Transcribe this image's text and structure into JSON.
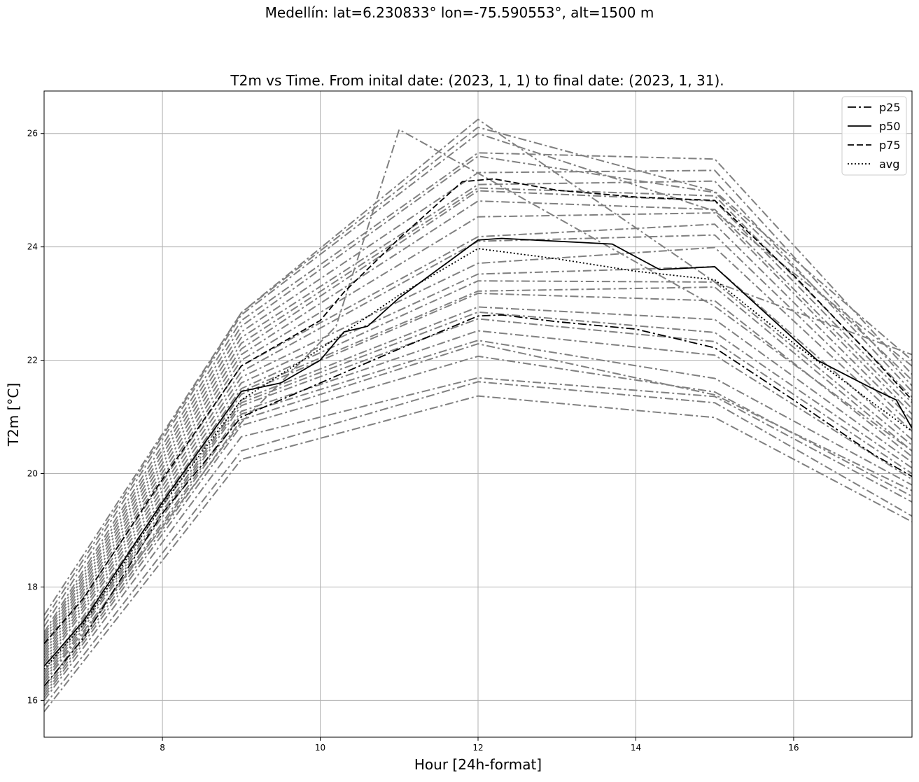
{
  "figure": {
    "suptitle": "Medellín: lat=6.230833° lon=-75.590553°, alt=1500 m"
  },
  "chart_data": {
    "type": "line",
    "title": "T2m vs Time. From inital date: (2023, 1, 1) to final date: (2023, 1, 31).",
    "xlabel": "Hour [24h-format]",
    "ylabel": "T2m [°C]",
    "xlim": [
      6.5,
      17.5
    ],
    "ylim": [
      15.35,
      26.75
    ],
    "xticks": [
      8,
      10,
      12,
      14,
      16
    ],
    "yticks": [
      16,
      18,
      20,
      22,
      24,
      26
    ],
    "grid": true,
    "legend_position": "top-right",
    "colors": {
      "members": "#808080",
      "summary": "#000000"
    },
    "member_hours": [
      6.5,
      9,
      12,
      15,
      17.5
    ],
    "members": [
      [
        15.8,
        20.25,
        21.37,
        20.99,
        19.15
      ],
      [
        15.9,
        20.4,
        21.62,
        21.25,
        19.25
      ],
      [
        16.0,
        20.65,
        21.69,
        21.36,
        19.5
      ],
      [
        16.05,
        20.85,
        22.07,
        21.44,
        19.6
      ],
      [
        16.1,
        20.95,
        22.29,
        21.39,
        19.7
      ],
      [
        16.15,
        21.05,
        22.35,
        21.68,
        19.8
      ],
      [
        16.2,
        21.1,
        22.52,
        22.09,
        19.9
      ],
      [
        16.3,
        21.2,
        22.73,
        22.33,
        20.0
      ],
      [
        16.35,
        21.25,
        22.85,
        22.49,
        20.1
      ],
      [
        16.4,
        21.3,
        22.94,
        22.72,
        20.2
      ],
      [
        16.45,
        21.4,
        23.18,
        23.05,
        20.3
      ],
      [
        16.5,
        21.45,
        23.22,
        23.29,
        20.4
      ],
      [
        16.6,
        21.5,
        23.4,
        23.38,
        20.5
      ],
      [
        16.65,
        21.6,
        23.52,
        23.65,
        20.6
      ],
      [
        16.7,
        21.7,
        23.71,
        23.99,
        20.75
      ],
      [
        16.75,
        21.8,
        24.1,
        24.21,
        20.85
      ],
      [
        16.8,
        21.9,
        24.18,
        24.4,
        20.95
      ],
      [
        16.85,
        22.0,
        24.53,
        24.6,
        21.05
      ],
      [
        16.9,
        22.1,
        24.81,
        24.66,
        21.15
      ],
      [
        16.95,
        22.2,
        24.99,
        24.81,
        21.25
      ],
      [
        17.0,
        22.3,
        25.04,
        24.9,
        21.35
      ],
      [
        17.05,
        22.4,
        25.1,
        25.16,
        21.45
      ],
      [
        17.1,
        22.5,
        25.31,
        25.35,
        21.55
      ],
      [
        17.15,
        22.6,
        25.6,
        24.96,
        21.65
      ],
      [
        17.2,
        22.7,
        25.66,
        25.55,
        21.75
      ],
      [
        17.3,
        22.8,
        26.0,
        24.63,
        21.9
      ],
      [
        17.4,
        22.84,
        26.11,
        24.98,
        22.0
      ],
      [
        17.5,
        22.84,
        26.25,
        23.38,
        22.1
      ]
    ],
    "extra_member": {
      "x": [
        6.5,
        9,
        10.2,
        11,
        12,
        15,
        17.5
      ],
      "y": [
        16.3,
        20.9,
        22.6,
        26.07,
        25.3,
        22.95,
        20.4
      ]
    },
    "summary_series": [
      {
        "name": "p25",
        "style": "dashdot",
        "x": [
          6.5,
          7,
          8,
          9,
          10,
          11,
          12,
          12.3,
          13,
          14,
          15,
          16,
          17,
          17.5
        ],
        "y": [
          16.25,
          17.1,
          19.3,
          21.0,
          21.6,
          22.2,
          22.78,
          22.8,
          22.68,
          22.55,
          22.22,
          21.3,
          20.35,
          19.95
        ]
      },
      {
        "name": "p50",
        "style": "solid",
        "x": [
          6.5,
          7,
          8,
          9,
          9.5,
          10,
          10.3,
          10.6,
          11,
          12,
          12.3,
          13.7,
          14.3,
          15,
          16.3,
          17,
          17.3,
          17.5
        ],
        "y": [
          16.6,
          17.4,
          19.5,
          21.45,
          21.6,
          22.0,
          22.5,
          22.6,
          23.1,
          24.12,
          24.15,
          24.05,
          23.6,
          23.65,
          22.0,
          21.5,
          21.3,
          20.8
        ]
      },
      {
        "name": "p75",
        "style": "dashed",
        "x": [
          6.5,
          7,
          8,
          9,
          9.5,
          10,
          10.3,
          11,
          11.8,
          12.2,
          13,
          14,
          15,
          16,
          17,
          17.5
        ],
        "y": [
          17.0,
          17.8,
          19.9,
          21.9,
          22.3,
          22.7,
          23.2,
          24.15,
          25.15,
          25.2,
          25.0,
          24.88,
          24.82,
          23.5,
          22.05,
          21.3
        ]
      },
      {
        "name": "avg",
        "style": "dotted",
        "x": [
          6.5,
          7,
          8,
          9,
          10,
          11,
          12,
          13,
          14,
          15,
          16,
          17,
          17.5
        ],
        "y": [
          16.55,
          17.35,
          19.45,
          21.3,
          22.2,
          23.15,
          23.97,
          23.79,
          23.57,
          23.42,
          22.3,
          21.25,
          20.75
        ]
      }
    ]
  }
}
